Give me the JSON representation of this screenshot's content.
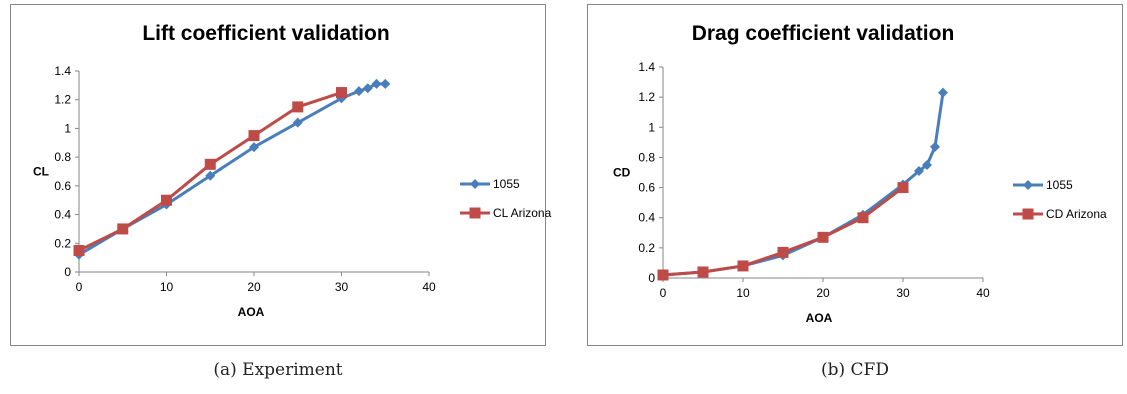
{
  "chart_data": [
    {
      "type": "line",
      "title": "Lift coefficient validation",
      "xlabel": "AOA",
      "ylabel": "CL",
      "xlim": [
        0,
        40
      ],
      "ylim": [
        0,
        1.4
      ],
      "xticks": [
        "0",
        "10",
        "20",
        "30",
        "40"
      ],
      "yticks": [
        "0",
        "0.2",
        "0.4",
        "0.6",
        "0.8",
        "1",
        "1.2",
        "1.4"
      ],
      "grid": false,
      "legend_position": "right",
      "caption": "(a) Experiment",
      "series": [
        {
          "name": "1055",
          "color": "#4a7ebb",
          "marker": "diamond",
          "x": [
            0,
            5,
            10,
            15,
            20,
            25,
            30,
            32,
            33,
            34,
            35
          ],
          "y": [
            0.12,
            0.3,
            0.47,
            0.67,
            0.87,
            1.04,
            1.21,
            1.26,
            1.28,
            1.31,
            1.31
          ]
        },
        {
          "name": "CL Arizona",
          "color": "#be4b48",
          "marker": "square",
          "x": [
            0,
            5,
            10,
            15,
            20,
            25,
            30
          ],
          "y": [
            0.15,
            0.3,
            0.5,
            0.75,
            0.95,
            1.15,
            1.25
          ]
        }
      ]
    },
    {
      "type": "line",
      "title": "Drag coefficient validation",
      "xlabel": "AOA",
      "ylabel": "CD",
      "xlim": [
        0,
        40
      ],
      "ylim": [
        0,
        1.4
      ],
      "xticks": [
        "0",
        "10",
        "20",
        "30",
        "40"
      ],
      "yticks": [
        "0",
        "0.2",
        "0.4",
        "0.6",
        "0.8",
        "1",
        "1.2",
        "1.4"
      ],
      "grid": false,
      "legend_position": "right",
      "caption": "(b) CFD",
      "series": [
        {
          "name": "1055",
          "color": "#4a7ebb",
          "marker": "diamond",
          "x": [
            0,
            5,
            10,
            15,
            20,
            25,
            30,
            32,
            33,
            34,
            35
          ],
          "y": [
            0.02,
            0.04,
            0.08,
            0.15,
            0.27,
            0.42,
            0.62,
            0.71,
            0.75,
            0.87,
            1.23
          ]
        },
        {
          "name": "CD Arizona",
          "color": "#be4b48",
          "marker": "square",
          "x": [
            0,
            5,
            10,
            15,
            20,
            25,
            30
          ],
          "y": [
            0.02,
            0.04,
            0.08,
            0.17,
            0.27,
            0.4,
            0.6
          ]
        }
      ]
    }
  ]
}
